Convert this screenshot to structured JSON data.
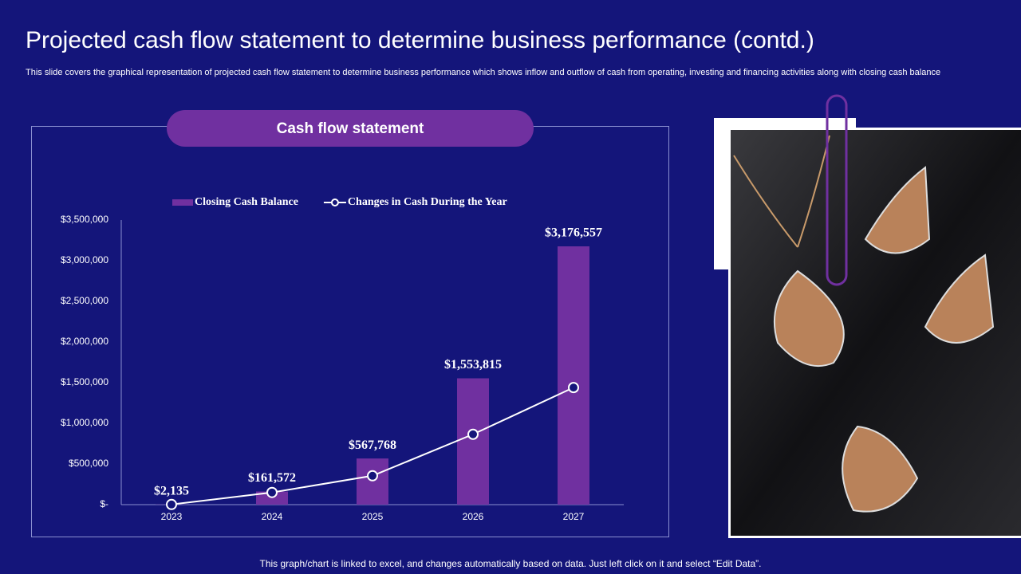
{
  "slide": {
    "title": "Projected cash flow statement to determine business performance (contd.)",
    "subtitle": "This slide covers the graphical representation of projected cash flow statement to determine business performance which shows inflow and outflow of cash from operating, investing and financing activities along with closing cash balance",
    "footer": "This graph/chart is linked to excel, and changes automatically based on data. Just left click on it and select “Edit Data”."
  },
  "chart_data": {
    "type": "bar",
    "title": "Cash flow statement",
    "categories": [
      "2023",
      "2024",
      "2025",
      "2026",
      "2027"
    ],
    "series": [
      {
        "name": "Closing Cash Balance",
        "type": "bar",
        "color": "#7030a0",
        "values": [
          2135,
          161572,
          567768,
          1553815,
          3176557
        ],
        "value_labels": [
          "$2,135",
          "$161,572",
          "$567,768",
          "$1,553,815",
          "$3,176,557"
        ]
      },
      {
        "name": "Changes in Cash During the Year",
        "type": "line",
        "color": "#ffffff",
        "values": [
          2135,
          150000,
          355000,
          865000,
          1440000
        ]
      }
    ],
    "ylim": [
      0,
      3500000
    ],
    "yticks": [
      {
        "value": 0,
        "label": "$-"
      },
      {
        "value": 500000,
        "label": "$500,000"
      },
      {
        "value": 1000000,
        "label": "$1,000,000"
      },
      {
        "value": 1500000,
        "label": "$1,500,000"
      },
      {
        "value": 2000000,
        "label": "$2,000,000"
      },
      {
        "value": 2500000,
        "label": "$2,500,000"
      },
      {
        "value": 3000000,
        "label": "$3,000,000"
      },
      {
        "value": 3500000,
        "label": "$3,500,000"
      }
    ],
    "legend": "top",
    "grid": false
  }
}
